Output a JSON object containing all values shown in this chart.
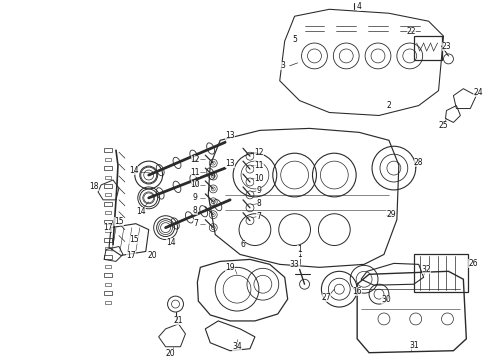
{
  "background_color": "#ffffff",
  "fig_width": 4.9,
  "fig_height": 3.6,
  "dpi": 100,
  "line_color": "#2a2a2a",
  "lw": 0.7,
  "number_color": "#111111",
  "number_fontsize": 5.5
}
